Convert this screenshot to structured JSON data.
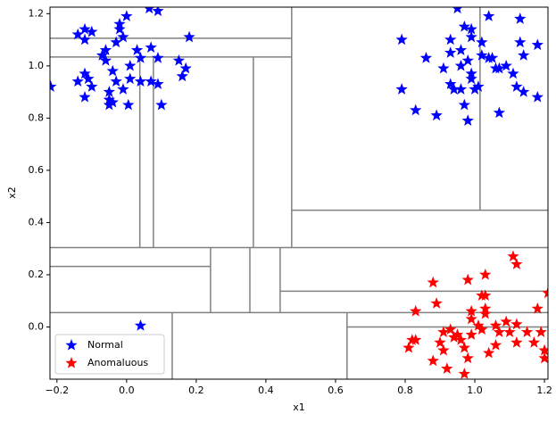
{
  "chart_data": {
    "type": "scatter",
    "x_label": "x1",
    "y_label": "x2",
    "xlim": [
      -0.22,
      1.21
    ],
    "ylim": [
      -0.2,
      1.225
    ],
    "xticks": [
      {
        "value": -0.2,
        "label": "−0.2"
      },
      {
        "value": 0,
        "label": "0.0"
      },
      0.2,
      0.4,
      0.6,
      0.8,
      {
        "value": 1,
        "label": "1.0"
      },
      1.2
    ],
    "yticks": [
      {
        "value": 0,
        "label": "0.0"
      },
      0.2,
      0.4,
      0.6,
      0.8,
      {
        "value": 1,
        "label": "1.0"
      },
      1.2
    ],
    "legend": "lower left",
    "split_color": "#808080",
    "splits": [
      {
        "x": [
          -0.22,
          1.21
        ],
        "y": [
          0.304,
          0.304
        ]
      },
      {
        "x": [
          -0.22,
          0.474
        ],
        "y": [
          1.106,
          1.106
        ]
      },
      {
        "x": [
          -0.22,
          0.474
        ],
        "y": [
          1.034,
          1.034
        ]
      },
      {
        "x": [
          0.474,
          1.21
        ],
        "y": [
          0.447,
          0.447
        ]
      },
      {
        "x": [
          -0.22,
          0.241
        ],
        "y": [
          0.232,
          0.232
        ]
      },
      {
        "x": [
          0.441,
          1.21
        ],
        "y": [
          0.137,
          0.137
        ]
      },
      {
        "x": [
          -0.22,
          1.21
        ],
        "y": [
          0.055,
          0.055
        ]
      },
      {
        "x": [
          0.633,
          1.21
        ],
        "y": [
          0.0,
          0.0
        ]
      },
      {
        "x": [
          0.474,
          0.474
        ],
        "y": [
          0.304,
          1.225
        ]
      },
      {
        "x": [
          1.015,
          1.015
        ],
        "y": [
          0.447,
          1.225
        ]
      },
      {
        "x": [
          0.364,
          0.364
        ],
        "y": [
          0.304,
          1.034
        ]
      },
      {
        "x": [
          0.038,
          0.038
        ],
        "y": [
          0.304,
          1.034
        ]
      },
      {
        "x": [
          0.077,
          0.077
        ],
        "y": [
          0.304,
          1.034
        ]
      },
      {
        "x": [
          0.241,
          0.241
        ],
        "y": [
          0.055,
          0.304
        ]
      },
      {
        "x": [
          0.354,
          0.354
        ],
        "y": [
          0.055,
          0.304
        ]
      },
      {
        "x": [
          0.441,
          0.441
        ],
        "y": [
          0.055,
          0.304
        ]
      },
      {
        "x": [
          0.131,
          0.131
        ],
        "y": [
          -0.2,
          0.055
        ]
      },
      {
        "x": [
          0.633,
          0.633
        ],
        "y": [
          -0.2,
          0.055
        ]
      }
    ],
    "series": [
      {
        "name": "Normal",
        "color": "#0000ff",
        "marker": "star",
        "x": [
          -0.218,
          -0.14,
          -0.12,
          -0.12,
          -0.1,
          -0.14,
          -0.12,
          -0.12,
          -0.11,
          -0.1,
          -0.07,
          -0.06,
          -0.06,
          -0.05,
          -0.05,
          -0.04,
          -0.04,
          -0.03,
          -0.03,
          -0.02,
          -0.02,
          -0.01,
          0.0,
          -0.01,
          0.005,
          0.01,
          0.01,
          0.03,
          0.04,
          0.04,
          0.065,
          0.07,
          0.07,
          0.09,
          0.09,
          0.09,
          0.1,
          0.15,
          0.16,
          0.17,
          0.18,
          -0.05,
          0.04,
          0.79,
          0.79,
          0.83,
          0.86,
          0.89,
          0.91,
          0.93,
          0.93,
          0.93,
          0.94,
          0.95,
          0.96,
          0.96,
          0.96,
          0.97,
          0.97,
          0.98,
          0.98,
          0.99,
          0.99,
          0.99,
          1.0,
          1.01,
          1.02,
          1.02,
          1.04,
          1.04,
          1.05,
          1.06,
          1.07,
          1.07,
          1.09,
          1.11,
          1.12,
          1.13,
          1.13,
          1.14,
          1.14,
          1.18,
          1.18,
          0.99
        ],
        "y": [
          0.92,
          1.12,
          1.14,
          1.1,
          1.13,
          0.94,
          0.97,
          0.88,
          0.95,
          0.92,
          1.04,
          1.02,
          1.06,
          0.85,
          0.9,
          0.86,
          0.98,
          0.94,
          1.09,
          1.16,
          1.14,
          1.11,
          1.19,
          0.91,
          0.85,
          1.0,
          0.95,
          1.06,
          0.94,
          1.03,
          1.22,
          1.07,
          0.94,
          1.21,
          1.03,
          0.93,
          0.85,
          1.02,
          0.96,
          0.99,
          1.11,
          0.87,
          0.005,
          1.1,
          0.91,
          0.83,
          1.03,
          0.81,
          0.99,
          1.05,
          0.93,
          1.1,
          0.91,
          1.22,
          0.91,
          1.06,
          1.0,
          1.15,
          0.85,
          0.79,
          1.02,
          1.11,
          0.97,
          1.14,
          0.91,
          0.92,
          1.04,
          1.09,
          1.19,
          1.03,
          1.03,
          0.99,
          0.82,
          0.99,
          1.0,
          0.97,
          0.92,
          1.18,
          1.09,
          1.04,
          0.9,
          1.08,
          0.88,
          0.95
        ]
      },
      {
        "name": "Anomaluous",
        "color": "#ff0000",
        "marker": "star",
        "x": [
          1.11,
          1.12,
          0.88,
          1.03,
          0.98,
          1.21,
          1.02,
          1.03,
          1.03,
          1.18,
          1.03,
          0.83,
          0.89,
          0.99,
          0.99,
          1.01,
          1.02,
          1.06,
          1.07,
          1.09,
          1.1,
          1.12,
          1.15,
          0.91,
          0.93,
          0.94,
          0.95,
          0.96,
          0.97,
          0.98,
          0.82,
          0.83,
          0.81,
          0.9,
          0.91,
          0.88,
          0.92,
          0.97,
          1.04,
          1.06,
          1.12,
          1.17,
          1.19,
          1.2,
          1.2,
          0.99
        ],
        "y": [
          0.27,
          0.24,
          0.17,
          0.2,
          0.18,
          0.13,
          0.12,
          0.12,
          0.07,
          0.07,
          0.05,
          0.06,
          0.09,
          0.06,
          0.03,
          0.005,
          -0.01,
          0.005,
          -0.02,
          0.02,
          -0.02,
          0.01,
          -0.02,
          -0.02,
          -0.01,
          -0.04,
          -0.03,
          -0.05,
          -0.08,
          -0.12,
          -0.05,
          -0.05,
          -0.08,
          -0.06,
          -0.09,
          -0.13,
          -0.16,
          -0.18,
          -0.1,
          -0.07,
          -0.06,
          -0.06,
          -0.02,
          -0.09,
          -0.12,
          -0.03
        ]
      }
    ]
  }
}
